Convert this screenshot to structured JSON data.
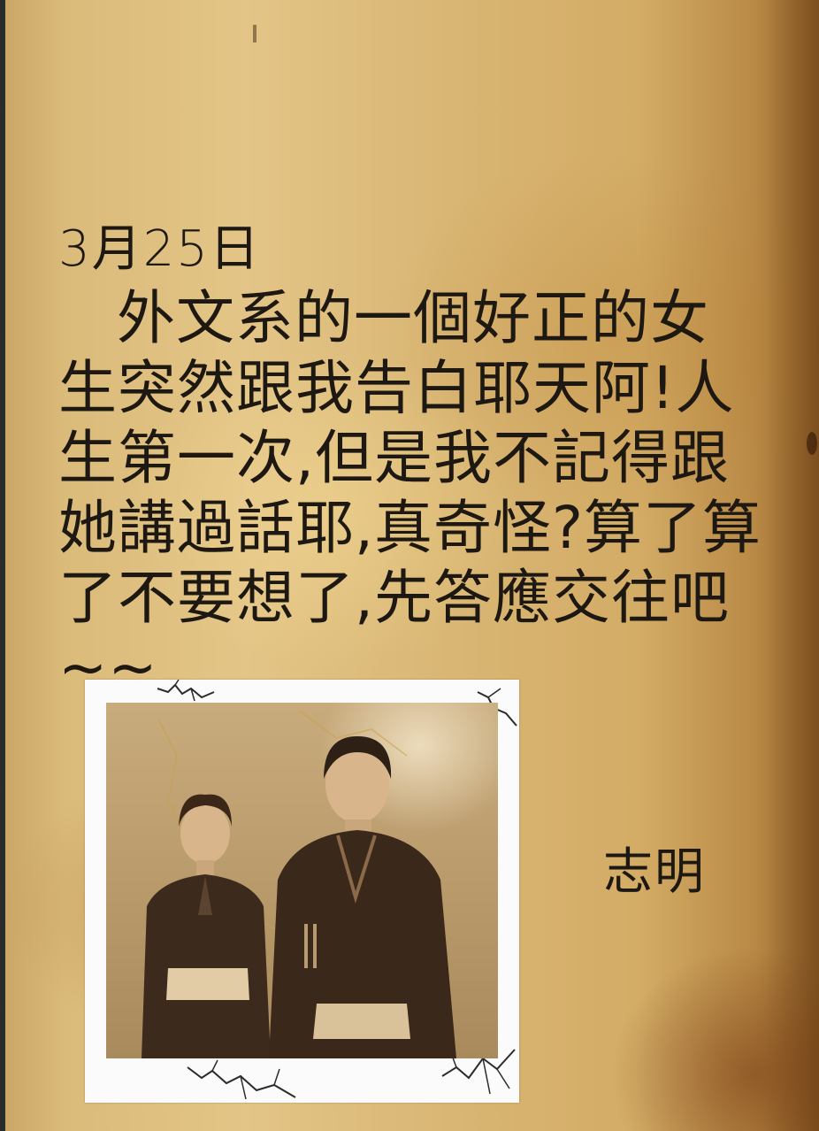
{
  "diary": {
    "date": "3月25日",
    "body": "外文系的一個好正的女生突然跟我告白耶天阿!人生第一次,但是我不記得跟她講過話耶,真奇怪?算了算了不要想了,先答應交往吧~~",
    "signature": "志明"
  },
  "photo": {
    "subject": "sepia-couple-portrait"
  },
  "colors": {
    "paper": "#dbbb7a",
    "ink": "#1d1812",
    "photo_border": "#fbfbfb",
    "sepia": "#b8996a"
  }
}
